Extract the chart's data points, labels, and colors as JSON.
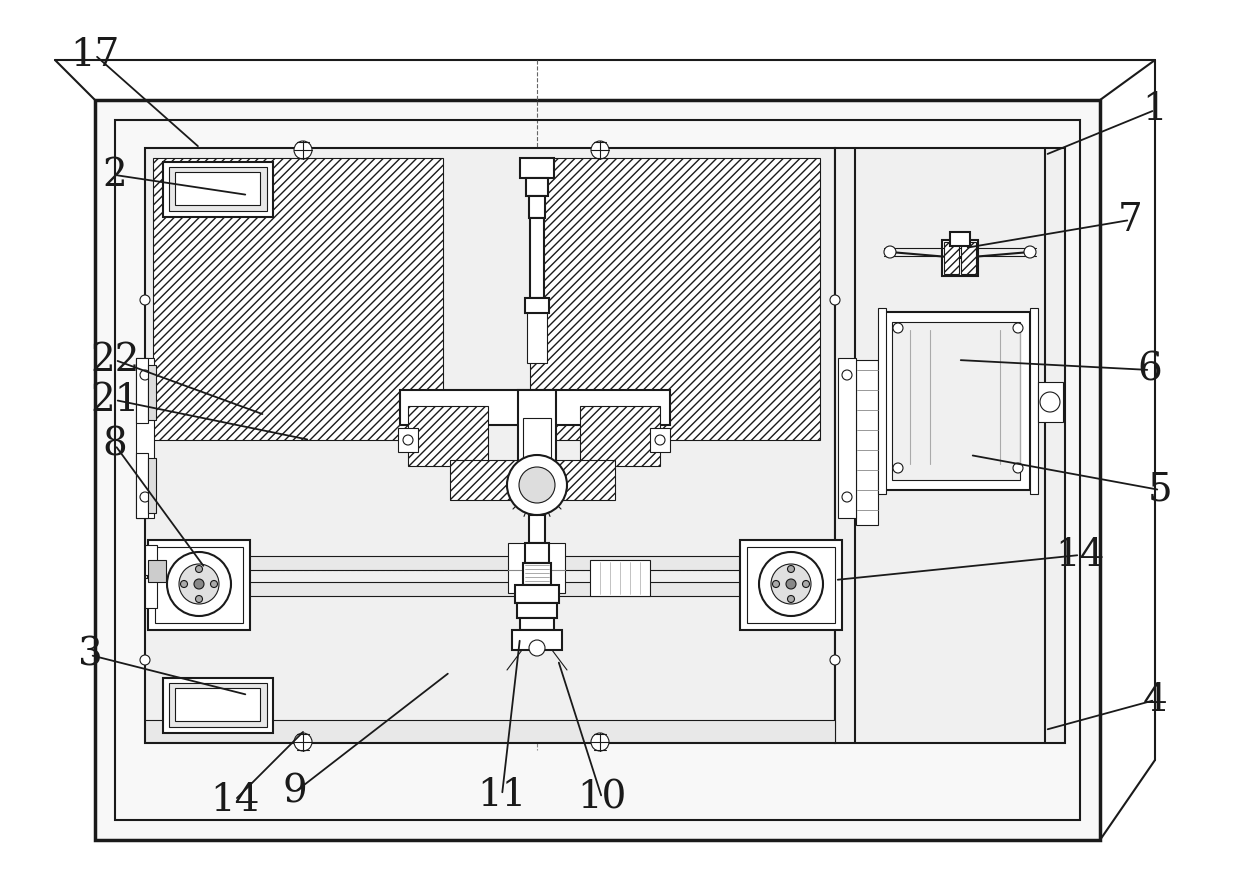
{
  "bg_color": "#ffffff",
  "line_color": "#1a1a1a",
  "fig_width": 12.4,
  "fig_height": 8.88,
  "label_fontsize": 28,
  "annotation_lw": 1.3,
  "annotations": [
    [
      "17",
      200,
      148,
      95,
      55
    ],
    [
      "2",
      248,
      195,
      115,
      175
    ],
    [
      "1",
      1045,
      155,
      1155,
      110
    ],
    [
      "3",
      248,
      695,
      90,
      655
    ],
    [
      "4",
      1045,
      730,
      1155,
      700
    ],
    [
      "7",
      965,
      248,
      1130,
      220
    ],
    [
      "6",
      958,
      360,
      1150,
      370
    ],
    [
      "5",
      970,
      455,
      1160,
      490
    ],
    [
      "22",
      265,
      415,
      115,
      360
    ],
    [
      "21",
      310,
      440,
      115,
      400
    ],
    [
      "8",
      205,
      568,
      115,
      445
    ],
    [
      "14",
      835,
      580,
      1080,
      555
    ],
    [
      "14",
      305,
      730,
      235,
      800
    ],
    [
      "9",
      450,
      672,
      295,
      792
    ],
    [
      "11",
      520,
      638,
      502,
      795
    ],
    [
      "10",
      558,
      660,
      602,
      798
    ]
  ]
}
